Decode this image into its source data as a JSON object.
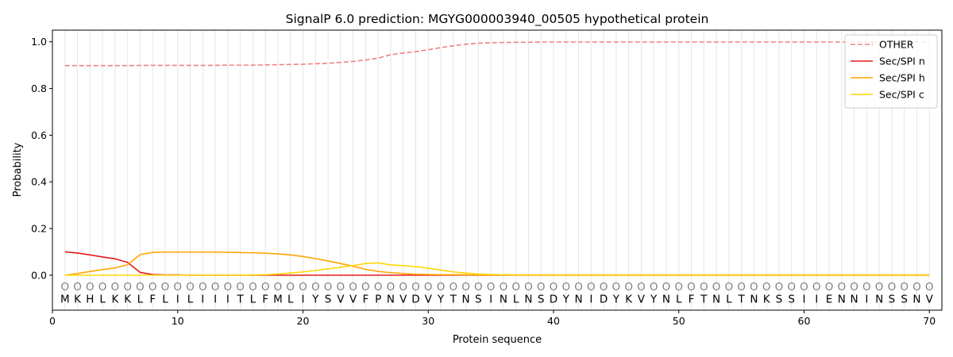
{
  "chart_data": {
    "type": "line",
    "title": "SignalP 6.0 prediction: MGYG000003940_00505 hypothetical protein",
    "xlabel": "Protein sequence",
    "ylabel": "Probability",
    "xlim": [
      0,
      71
    ],
    "ylim": [
      -0.15,
      1.05
    ],
    "x_ticks": [
      0,
      10,
      20,
      30,
      40,
      50,
      60,
      70
    ],
    "y_ticks": [
      0.0,
      0.2,
      0.4,
      0.6,
      0.8,
      1.0
    ],
    "x_tick_labels": [
      "0",
      "10",
      "20",
      "30",
      "40",
      "50",
      "60",
      "70"
    ],
    "y_tick_labels": [
      "0.0",
      "0.2",
      "0.4",
      "0.6",
      "0.8",
      "1.0"
    ],
    "grid": "vertical lines at each residue",
    "legend_position": "top-right",
    "sequence": [
      "M",
      "K",
      "H",
      "L",
      "K",
      "K",
      "L",
      "F",
      "L",
      "I",
      "L",
      "I",
      "I",
      "I",
      "T",
      "L",
      "F",
      "M",
      "L",
      "I",
      "Y",
      "S",
      "V",
      "V",
      "F",
      "P",
      "N",
      "V",
      "D",
      "V",
      "Y",
      "T",
      "N",
      "S",
      "I",
      "N",
      "L",
      "N",
      "S",
      "D",
      "Y",
      "N",
      "I",
      "D",
      "Y",
      "K",
      "V",
      "Y",
      "N",
      "L",
      "F",
      "T",
      "N",
      "L",
      "T",
      "N",
      "K",
      "S",
      "S",
      "I",
      "I",
      "E",
      "N",
      "N",
      "I",
      "N",
      "S",
      "S",
      "N",
      "V"
    ],
    "region_marker": "O",
    "x": [
      1,
      2,
      3,
      4,
      5,
      6,
      7,
      8,
      9,
      10,
      11,
      12,
      13,
      14,
      15,
      16,
      17,
      18,
      19,
      20,
      21,
      22,
      23,
      24,
      25,
      26,
      27,
      28,
      29,
      30,
      31,
      32,
      33,
      34,
      35,
      36,
      37,
      38,
      39,
      40,
      41,
      42,
      43,
      44,
      45,
      46,
      47,
      48,
      49,
      50,
      51,
      52,
      53,
      54,
      55,
      56,
      57,
      58,
      59,
      60,
      61,
      62,
      63,
      64,
      65,
      66,
      67,
      68,
      69,
      70
    ],
    "series": [
      {
        "name": "OTHER",
        "color": "#f08080",
        "style": "dashed",
        "values": [
          0.898,
          0.898,
          0.898,
          0.898,
          0.898,
          0.898,
          0.899,
          0.899,
          0.899,
          0.899,
          0.899,
          0.899,
          0.899,
          0.9,
          0.9,
          0.9,
          0.901,
          0.902,
          0.903,
          0.904,
          0.906,
          0.908,
          0.912,
          0.916,
          0.922,
          0.93,
          0.945,
          0.952,
          0.958,
          0.966,
          0.975,
          0.983,
          0.99,
          0.994,
          0.996,
          0.997,
          0.998,
          0.998,
          0.999,
          0.999,
          0.999,
          0.999,
          0.999,
          0.999,
          0.999,
          0.999,
          0.999,
          0.999,
          0.999,
          0.999,
          0.999,
          0.999,
          0.999,
          0.999,
          0.999,
          0.999,
          0.999,
          0.999,
          0.999,
          0.999,
          0.999,
          0.999,
          0.999,
          0.999,
          0.999,
          0.999,
          0.999,
          0.999,
          0.999,
          0.999
        ]
      },
      {
        "name": "Sec/SPI n",
        "color": "#e41a1c",
        "style": "solid",
        "values": [
          0.1,
          0.095,
          0.087,
          0.078,
          0.07,
          0.055,
          0.012,
          0.003,
          0.001,
          0.001,
          0.0,
          0.0,
          0.0,
          0.0,
          0.0,
          0.0,
          0.0,
          0.0,
          0.0,
          0.0,
          0.0,
          0.0,
          0.0,
          0.0,
          0.0,
          0.0,
          0.0,
          0.0,
          0.0,
          0.0,
          0.0,
          0.0,
          0.0,
          0.0,
          0.0,
          0.0,
          0.0,
          0.0,
          0.0,
          0.0,
          0.0,
          0.0,
          0.0,
          0.0,
          0.0,
          0.0,
          0.0,
          0.0,
          0.0,
          0.0,
          0.0,
          0.0,
          0.0,
          0.0,
          0.0,
          0.0,
          0.0,
          0.0,
          0.0,
          0.0,
          0.0,
          0.0,
          0.0,
          0.0,
          0.0,
          0.0,
          0.0,
          0.0,
          0.0,
          0.0
        ]
      },
      {
        "name": "Sec/SPI h",
        "color": "#ffa500",
        "style": "solid",
        "values": [
          0.0,
          0.007,
          0.016,
          0.024,
          0.031,
          0.045,
          0.088,
          0.098,
          0.099,
          0.099,
          0.099,
          0.099,
          0.099,
          0.098,
          0.097,
          0.096,
          0.094,
          0.091,
          0.087,
          0.08,
          0.071,
          0.061,
          0.05,
          0.038,
          0.025,
          0.016,
          0.011,
          0.007,
          0.004,
          0.003,
          0.002,
          0.002,
          0.001,
          0.001,
          0.001,
          0.001,
          0.001,
          0.001,
          0.001,
          0.001,
          0.001,
          0.001,
          0.001,
          0.001,
          0.001,
          0.001,
          0.001,
          0.001,
          0.001,
          0.001,
          0.001,
          0.001,
          0.001,
          0.001,
          0.001,
          0.001,
          0.001,
          0.001,
          0.001,
          0.001,
          0.001,
          0.001,
          0.001,
          0.001,
          0.001,
          0.001,
          0.001,
          0.001,
          0.001,
          0.001
        ]
      },
      {
        "name": "Sec/SPI c",
        "color": "#ffd700",
        "style": "solid",
        "values": [
          0.0,
          0.0,
          0.0,
          0.0,
          0.0,
          0.0,
          0.0,
          0.0,
          0.0,
          0.0,
          0.0,
          0.0,
          0.0,
          0.0,
          0.0,
          0.001,
          0.002,
          0.005,
          0.009,
          0.014,
          0.02,
          0.027,
          0.034,
          0.041,
          0.05,
          0.053,
          0.044,
          0.041,
          0.037,
          0.03,
          0.022,
          0.014,
          0.009,
          0.005,
          0.003,
          0.002,
          0.001,
          0.001,
          0.0,
          0.0,
          0.0,
          0.0,
          0.0,
          0.0,
          0.0,
          0.0,
          0.0,
          0.0,
          0.0,
          0.0,
          0.0,
          0.0,
          0.0,
          0.0,
          0.0,
          0.0,
          0.0,
          0.0,
          0.0,
          0.0,
          0.0,
          0.0,
          0.0,
          0.0,
          0.0,
          0.0,
          0.0,
          0.0,
          0.0,
          0.0
        ]
      }
    ]
  }
}
